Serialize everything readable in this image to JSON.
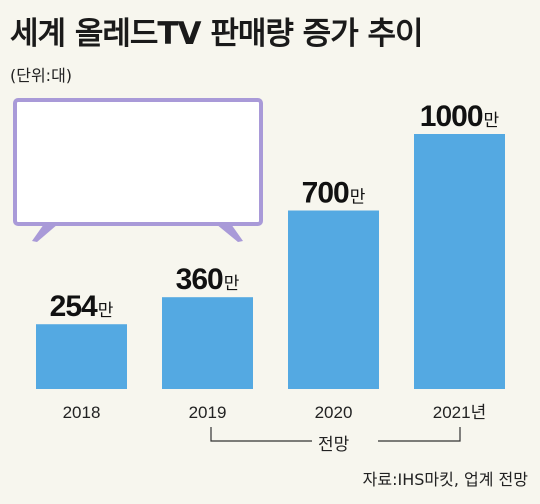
{
  "title": "세계 올레드TV 판매량 증가 추이",
  "unit_label": "(단위:대)",
  "forecast_label": "전망",
  "source": "자료:IHS마킷, 업계 전망",
  "colors": {
    "bar": "#54a9e2",
    "tv_outline": "#a99ad8",
    "background": "#f7f6ee"
  },
  "chart_data": {
    "type": "bar",
    "title": "세계 올레드TV 판매량 증가 추이",
    "ylabel": "(단위:대)",
    "value_suffix": "만",
    "categories": [
      "2018",
      "2019",
      "2020",
      "2021년"
    ],
    "values": [
      254,
      360,
      700,
      1000
    ],
    "value_labels": [
      "254",
      "360",
      "700",
      "1000"
    ],
    "forecast_categories": [
      "2020",
      "2021년"
    ],
    "ylim": [
      0,
      1000
    ],
    "grid": false,
    "legend": "none"
  }
}
